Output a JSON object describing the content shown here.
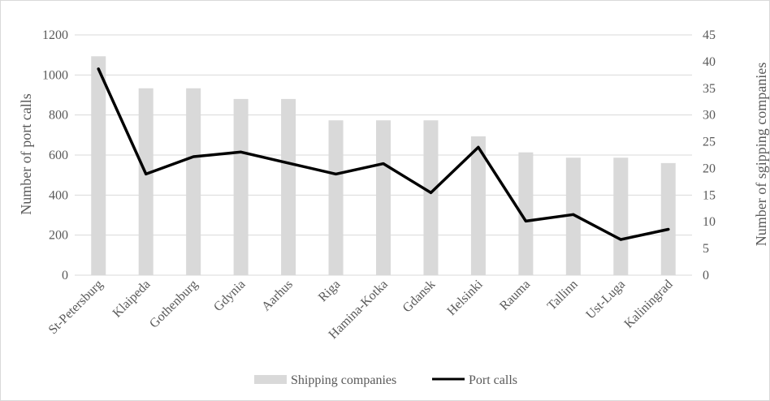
{
  "chart_data": {
    "type": "bar+line",
    "title": "",
    "categories": [
      "St-Petersburg",
      "Klaipeda",
      "Gothenburg",
      "Gdynia",
      "Aarhus",
      "Riga",
      "Hamina-Kotka",
      "Gdansk",
      "Helsinki",
      "Rauma",
      "Tallinn",
      "Ust-Luga",
      "Kaliningrad"
    ],
    "series": [
      {
        "name": "Shipping companies",
        "type": "bar",
        "axis": "right",
        "color": "#d9d9d9",
        "values": [
          41,
          35,
          35,
          33,
          33,
          29,
          29,
          29,
          26,
          23,
          22,
          22,
          21
        ]
      },
      {
        "name": "Port calls",
        "type": "line",
        "axis": "left",
        "color": "#000000",
        "values": [
          1030,
          505,
          592,
          615,
          560,
          505,
          557,
          412,
          639,
          270,
          303,
          178,
          229
        ]
      }
    ],
    "ylabel": "Number of port calls",
    "ylim": [
      0,
      1200
    ],
    "yticks": [
      "0",
      "200",
      "400",
      "600",
      "800",
      "1000",
      "1200"
    ],
    "y2label": "Number  of sgipping companies",
    "y2lim": [
      0,
      45
    ],
    "y2ticks": [
      "0",
      "5",
      "10",
      "15",
      "20",
      "25",
      "30",
      "35",
      "40",
      "45"
    ],
    "grid": true,
    "legend_position": "bottom"
  }
}
